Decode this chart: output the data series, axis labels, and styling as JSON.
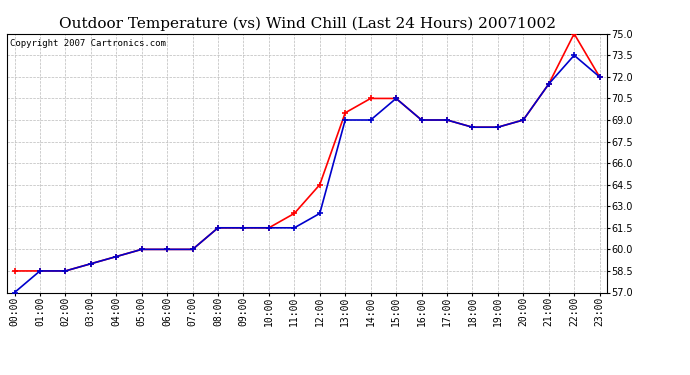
{
  "title": "Outdoor Temperature (vs) Wind Chill (Last 24 Hours) 20071002",
  "copyright": "Copyright 2007 Cartronics.com",
  "x_labels": [
    "00:00",
    "01:00",
    "02:00",
    "03:00",
    "04:00",
    "05:00",
    "06:00",
    "07:00",
    "08:00",
    "09:00",
    "10:00",
    "11:00",
    "12:00",
    "13:00",
    "14:00",
    "15:00",
    "16:00",
    "17:00",
    "18:00",
    "19:00",
    "20:00",
    "21:00",
    "22:00",
    "23:00"
  ],
  "outdoor_temp": [
    58.5,
    58.5,
    58.5,
    59.0,
    59.5,
    60.0,
    60.0,
    60.0,
    61.5,
    61.5,
    61.5,
    62.5,
    64.5,
    69.5,
    70.5,
    70.5,
    69.0,
    69.0,
    68.5,
    68.5,
    69.0,
    71.5,
    75.0,
    72.0
  ],
  "wind_chill": [
    57.0,
    58.5,
    58.5,
    59.0,
    59.5,
    60.0,
    60.0,
    60.0,
    61.5,
    61.5,
    61.5,
    61.5,
    62.5,
    69.0,
    69.0,
    70.5,
    69.0,
    69.0,
    68.5,
    68.5,
    69.0,
    71.5,
    73.5,
    72.0
  ],
  "outdoor_color": "#ff0000",
  "windchill_color": "#0000cc",
  "background_color": "#ffffff",
  "grid_color": "#bbbbbb",
  "ylim_min": 57.0,
  "ylim_max": 75.0,
  "yticks": [
    57.0,
    58.5,
    60.0,
    61.5,
    63.0,
    64.5,
    66.0,
    67.5,
    69.0,
    70.5,
    72.0,
    73.5,
    75.0
  ],
  "title_fontsize": 11,
  "tick_fontsize": 7,
  "copyright_fontsize": 6.5
}
